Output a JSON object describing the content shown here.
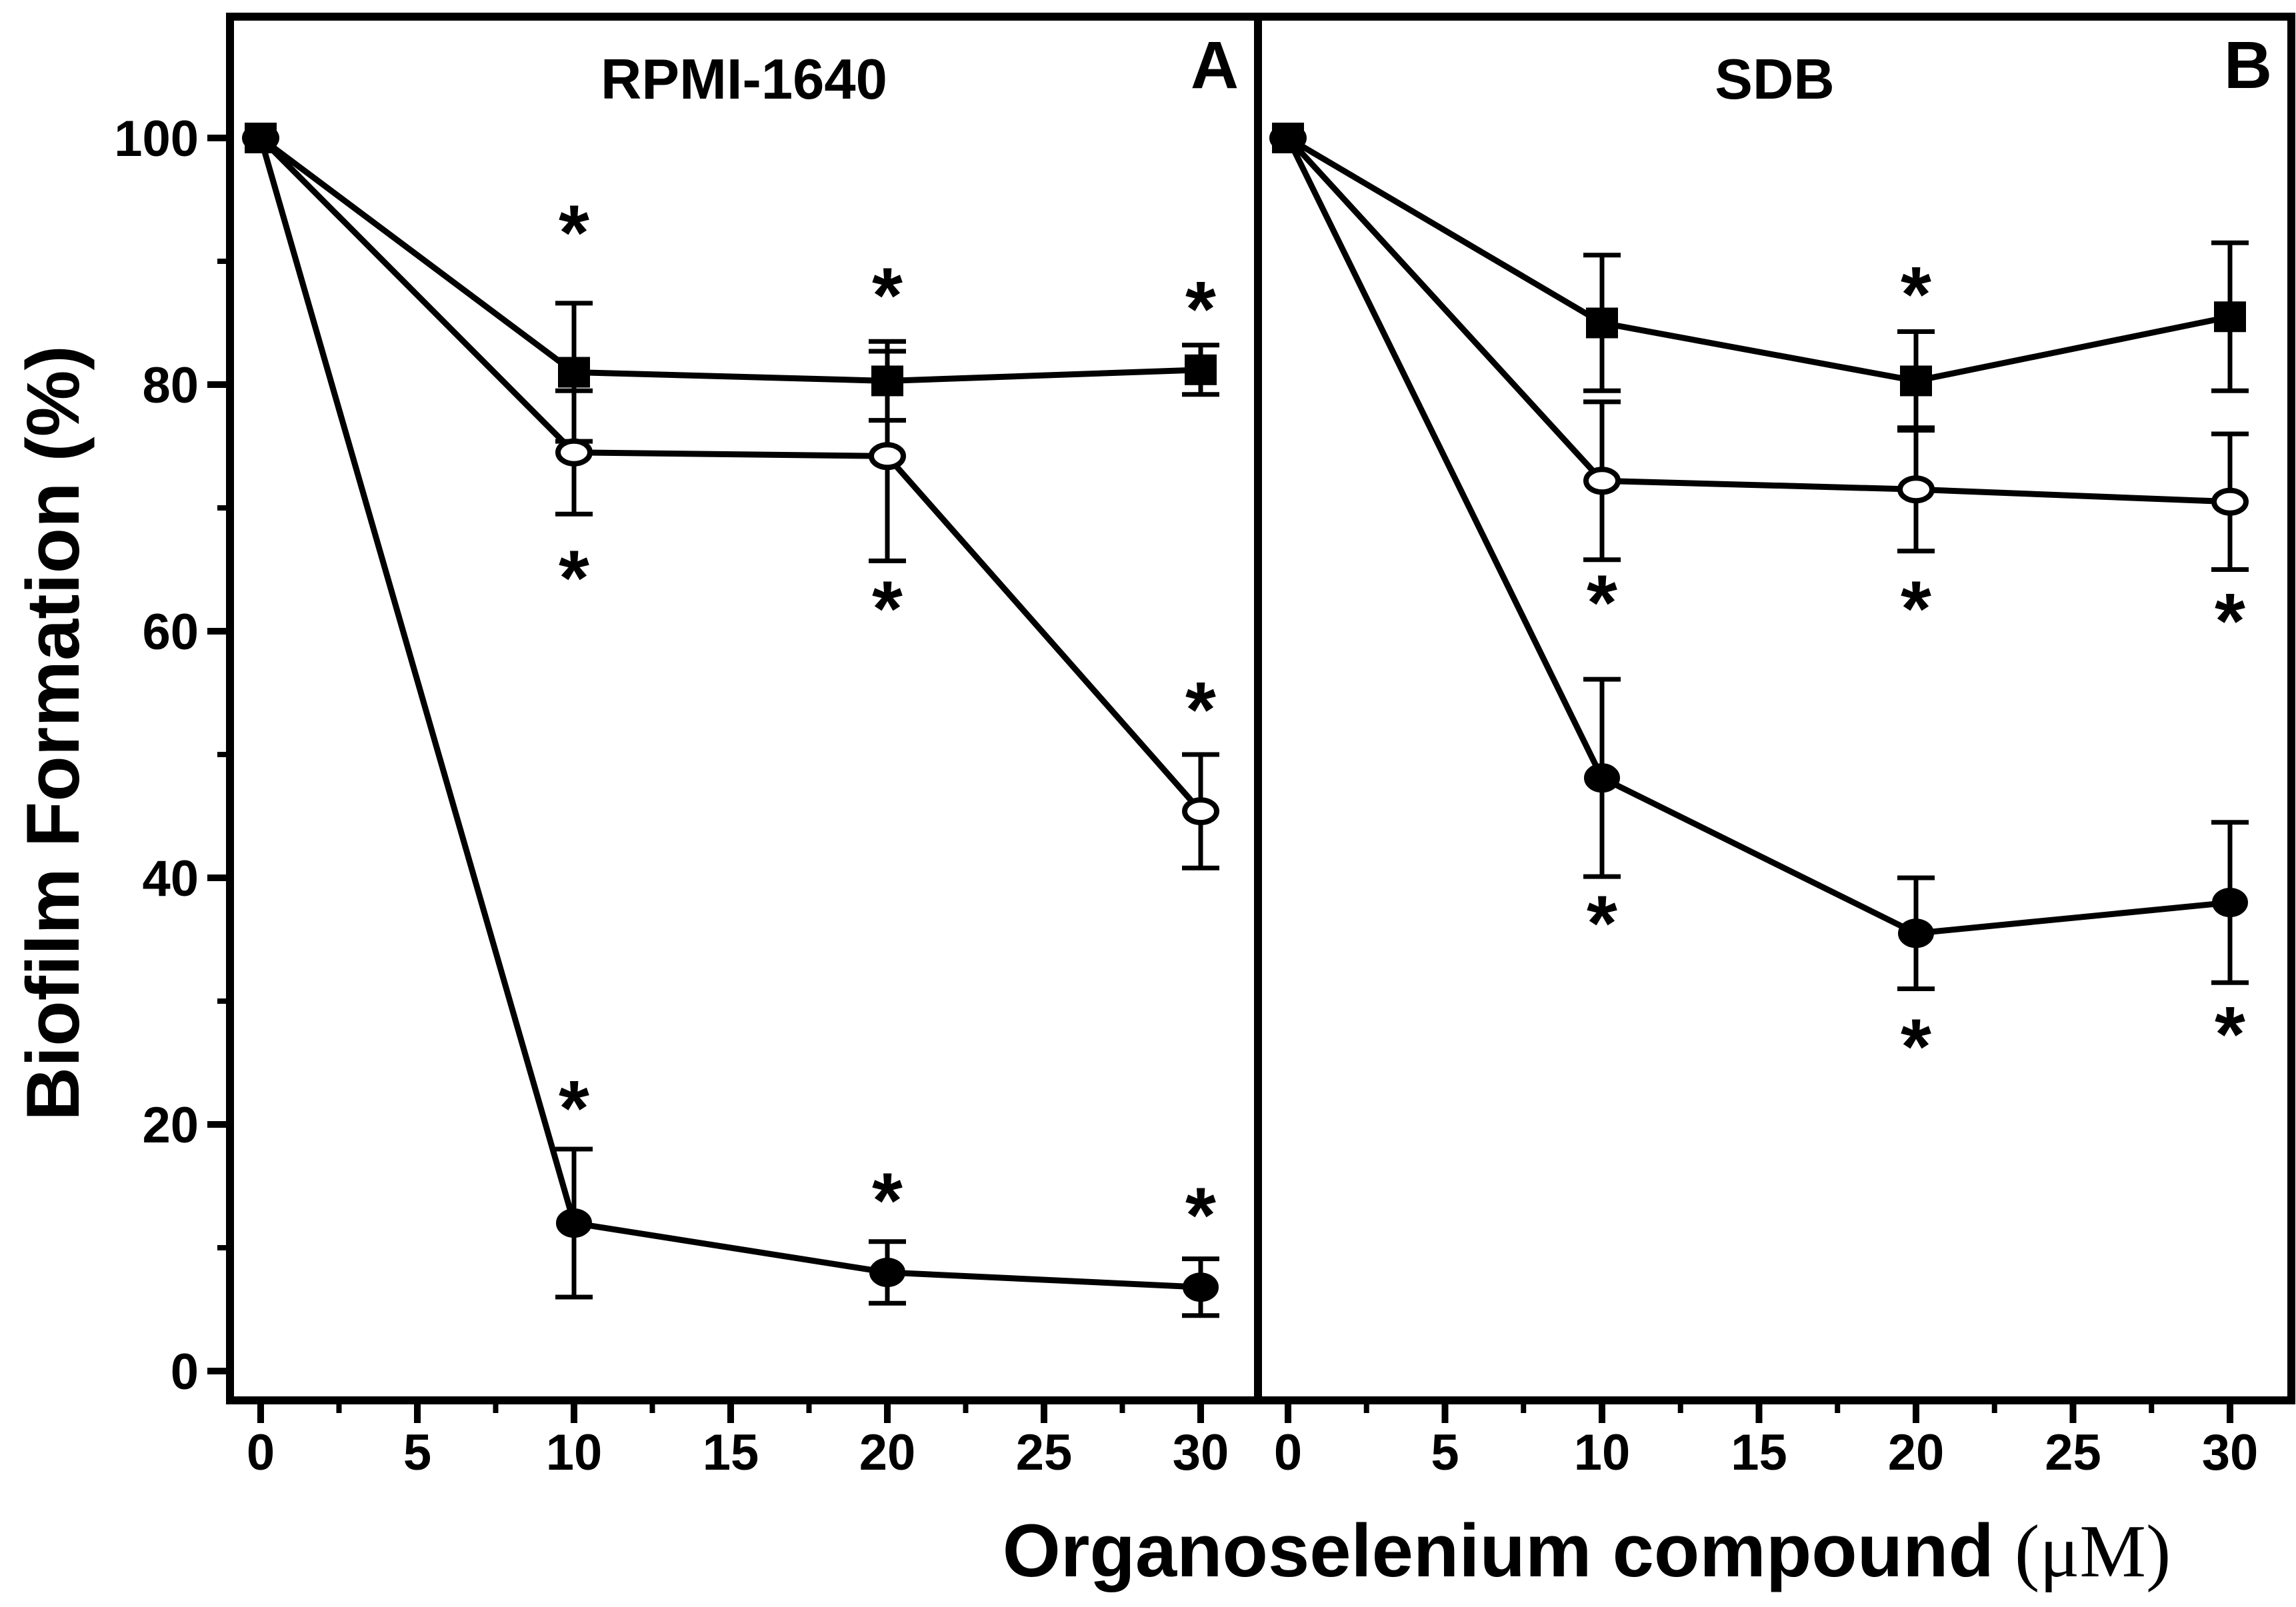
{
  "figure": {
    "background": "#ffffff",
    "foreground": "#000000"
  },
  "chart_data": {
    "type": "line",
    "title": "",
    "xlabel": "Organoselenium compound (μM)",
    "xlabel_main": "Organoselenium compound ",
    "xlabel_unit": "(μM)",
    "ylabel": "Biofilm Formation (%)",
    "ylim": [
      0,
      112
    ],
    "xlim": [
      -1,
      32.5
    ],
    "x_ticks_major": [
      0,
      5,
      10,
      15,
      20,
      25,
      30
    ],
    "x_ticks_minor": [
      2.5,
      7.5,
      12.5,
      17.5,
      22.5,
      27.5
    ],
    "y_ticks_major": [
      0,
      20,
      40,
      60,
      80,
      100
    ],
    "y_ticks_minor": [
      10,
      30,
      50,
      70,
      90
    ],
    "grid": false,
    "legend": "none",
    "annotation_symbol": "*",
    "colors": {
      "series": "#000000",
      "background": "#ffffff"
    },
    "panels": [
      {
        "id": "A",
        "title": "RPMI-1640",
        "corner_label": "A",
        "series": [
          {
            "name": "filled-square-series",
            "marker": "square-filled",
            "x": [
              0,
              10,
              20,
              30
            ],
            "y": [
              100,
              81.0,
              80.3,
              81.2
            ],
            "err": [
              0,
              5.6,
              3.2,
              2.0
            ]
          },
          {
            "name": "open-circle-series",
            "marker": "circle-open",
            "x": [
              0,
              10,
              20,
              30
            ],
            "y": [
              100,
              74.5,
              74.2,
              45.4
            ],
            "err": [
              0,
              5.0,
              8.5,
              4.6
            ]
          },
          {
            "name": "filled-circle-series",
            "marker": "circle-filled",
            "x": [
              0,
              10,
              20,
              30
            ],
            "y": [
              100,
              12.0,
              8.0,
              6.8
            ],
            "err": [
              0,
              6.0,
              2.5,
              2.3
            ]
          }
        ],
        "asterisks": [
          {
            "x": 10,
            "y": 93.5
          },
          {
            "x": 10,
            "y": 65.5
          },
          {
            "x": 10,
            "y": 22.5
          },
          {
            "x": 20,
            "y": 88.4
          },
          {
            "x": 20,
            "y": 63.0
          },
          {
            "x": 20,
            "y": 15.0
          },
          {
            "x": 30,
            "y": 87.3
          },
          {
            "x": 30,
            "y": 54.8
          },
          {
            "x": 30,
            "y": 13.8
          }
        ]
      },
      {
        "id": "B",
        "title": "SDB",
        "corner_label": "B",
        "series": [
          {
            "name": "filled-square-series",
            "marker": "square-filled",
            "x": [
              0,
              10,
              20,
              30
            ],
            "y": [
              100,
              85.0,
              80.3,
              85.5
            ],
            "err": [
              0,
              5.5,
              4.0,
              6.0
            ]
          },
          {
            "name": "open-circle-series",
            "marker": "circle-open",
            "x": [
              0,
              10,
              20,
              30
            ],
            "y": [
              100,
              72.2,
              71.5,
              70.5
            ],
            "err": [
              0,
              6.4,
              5.0,
              5.5
            ]
          },
          {
            "name": "filled-circle-series",
            "marker": "circle-filled",
            "x": [
              0,
              10,
              20,
              30
            ],
            "y": [
              100,
              48.1,
              35.5,
              38.0
            ],
            "err": [
              0,
              8.0,
              4.5,
              6.5
            ]
          }
        ],
        "asterisks": [
          {
            "x": 10,
            "y": 63.5
          },
          {
            "x": 10,
            "y": 37.5
          },
          {
            "x": 20,
            "y": 88.5
          },
          {
            "x": 20,
            "y": 63.0
          },
          {
            "x": 20,
            "y": 27.5
          },
          {
            "x": 30,
            "y": 62.0
          },
          {
            "x": 30,
            "y": 28.5
          }
        ]
      }
    ]
  }
}
